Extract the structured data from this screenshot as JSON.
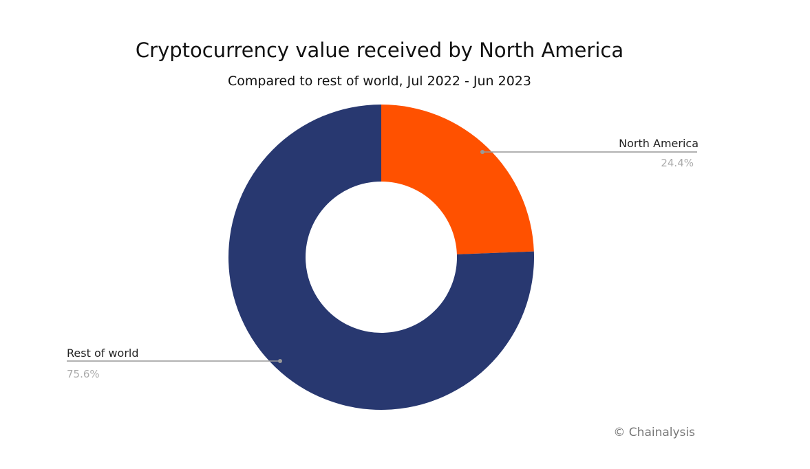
{
  "chart_data": {
    "type": "pie",
    "variant": "donut",
    "title": "Cryptocurrency value received by North America",
    "subtitle": "Compared to rest of world, Jul 2022 - Jun 2023",
    "slices": [
      {
        "label": "North America",
        "value": 24.4,
        "value_label": "24.4%",
        "color": "#FF5100"
      },
      {
        "label": "Rest of world",
        "value": 75.6,
        "value_label": "75.6%",
        "color": "#283870"
      }
    ],
    "legend": "none"
  },
  "credit": "© Chainalysis"
}
